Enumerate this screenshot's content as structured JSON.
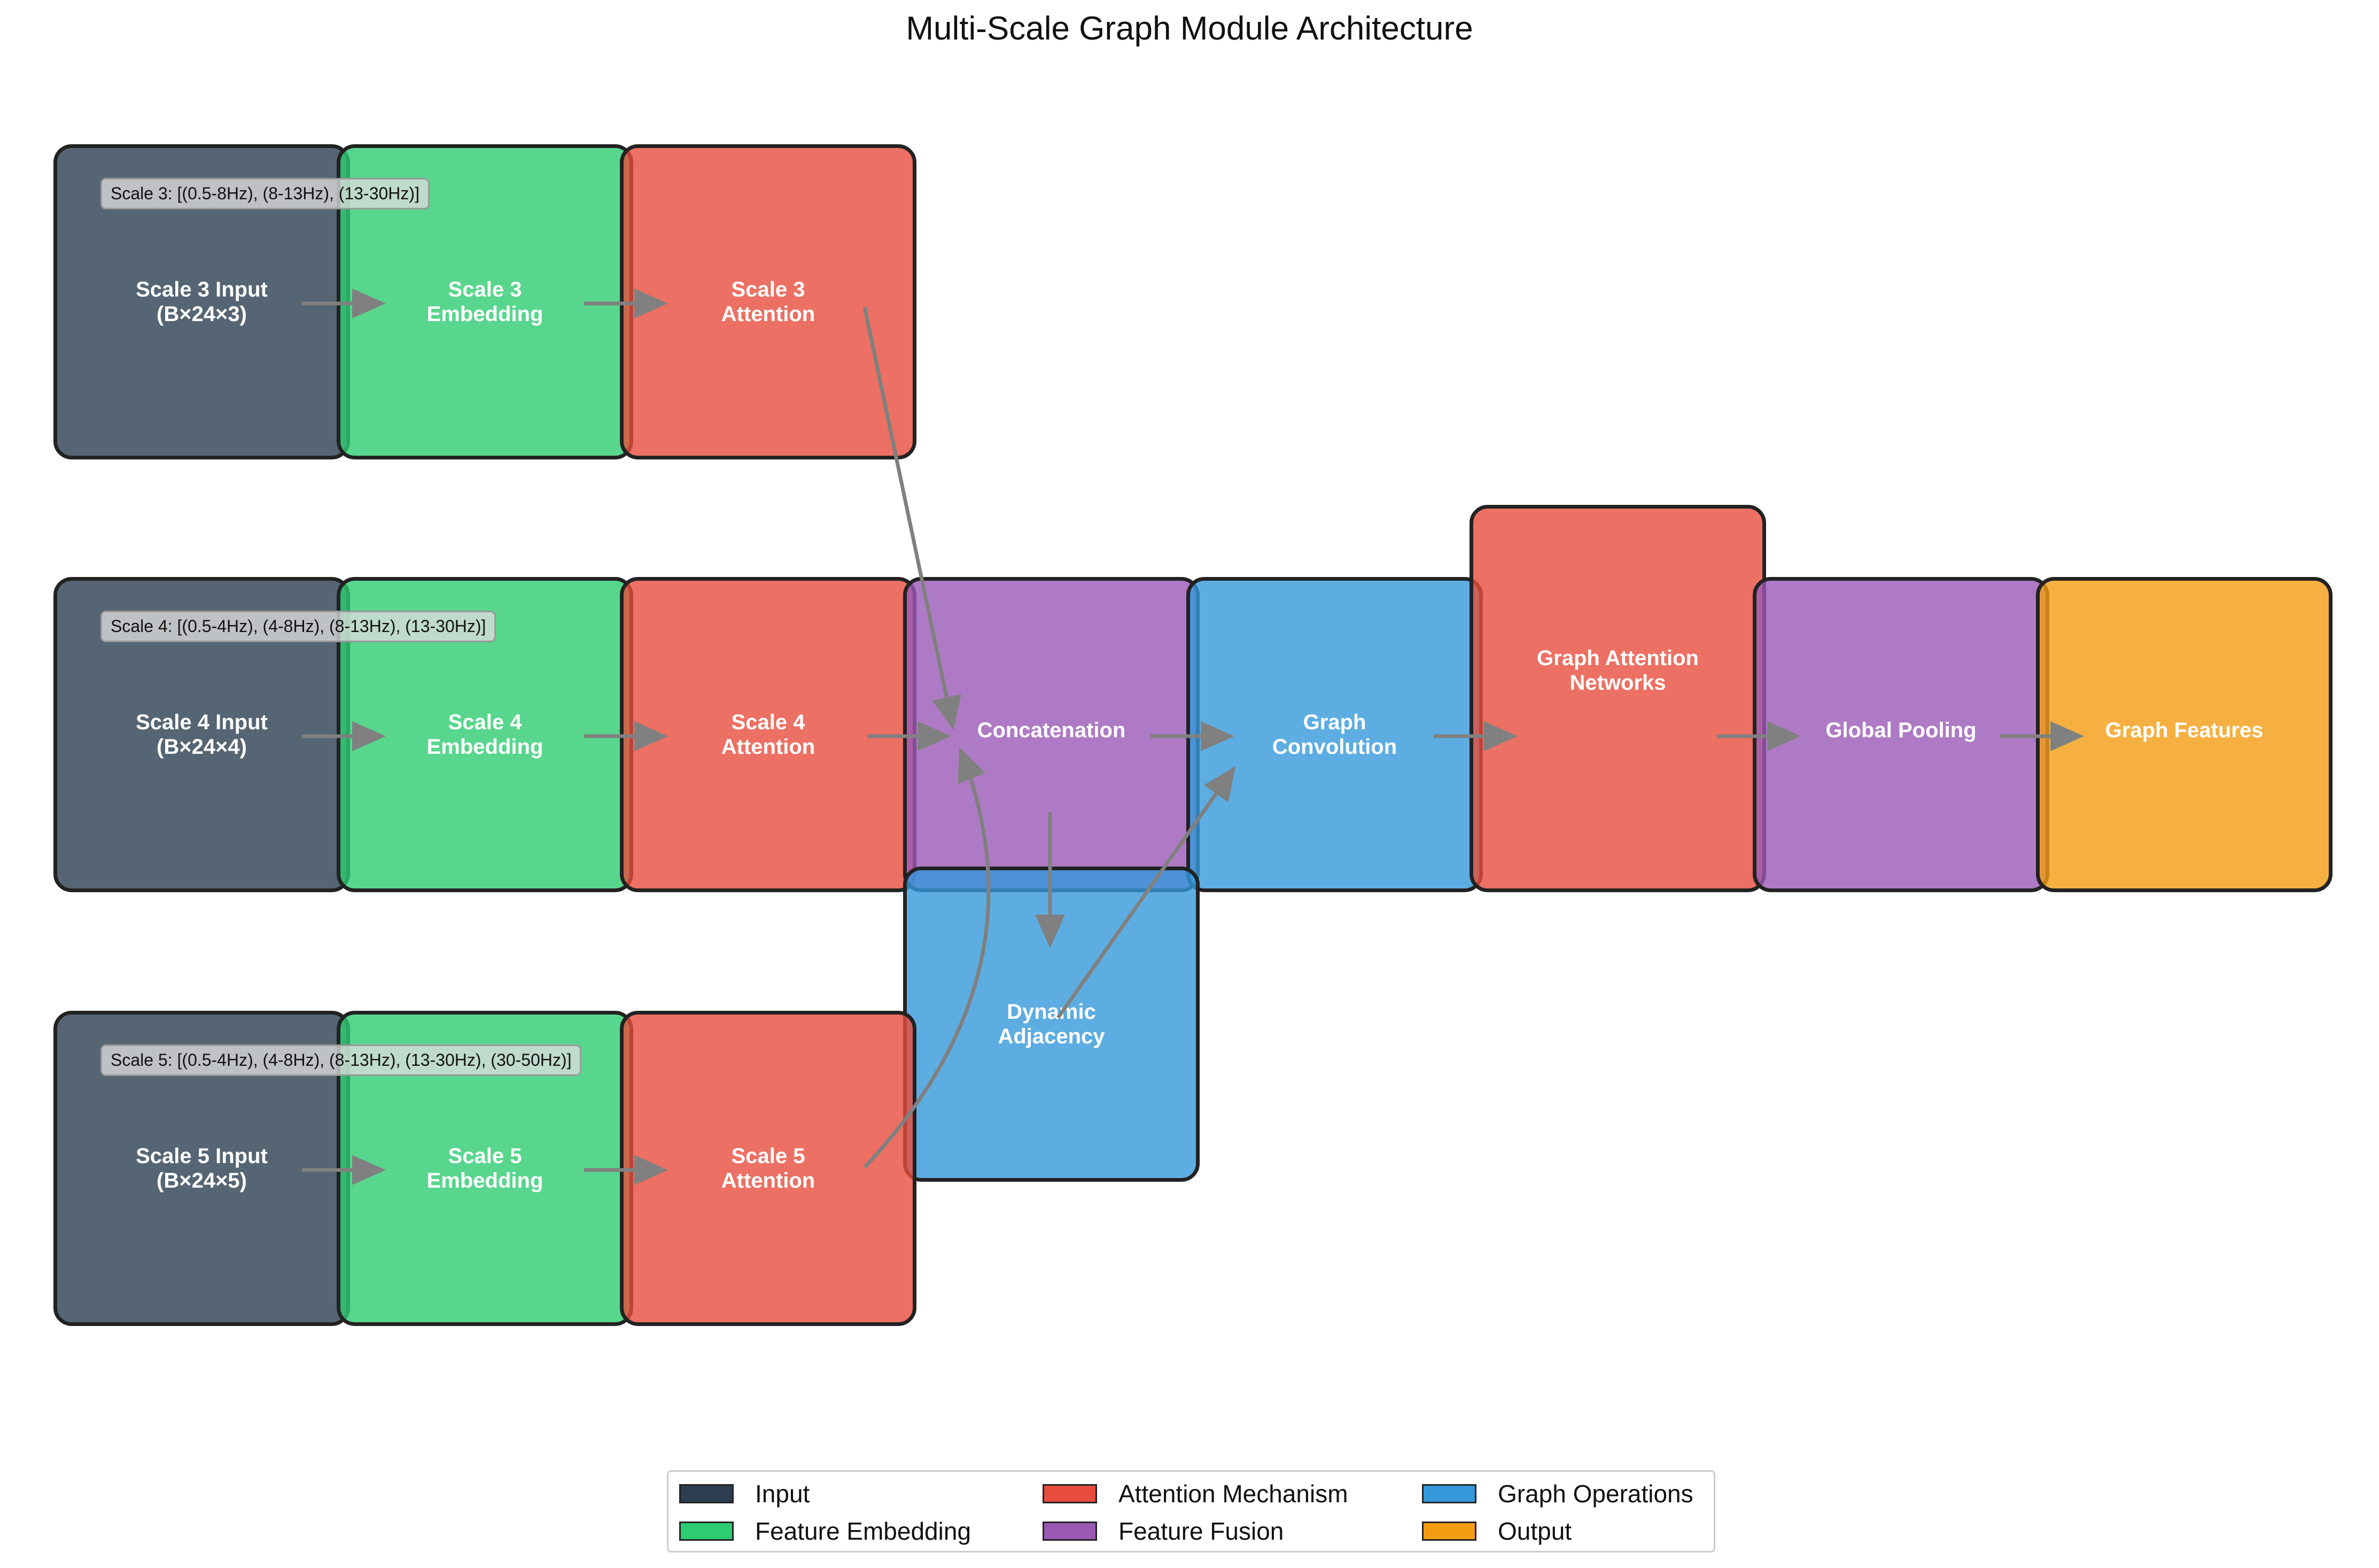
{
  "title": "Multi-Scale Graph Module Architecture",
  "nodes": {
    "scale3_input": "Scale 3 Input\n(B×24×3)",
    "scale3_embedding": "Scale 3\nEmbedding",
    "scale3_attention": "Scale 3\nAttention",
    "scale4_input": "Scale 4 Input\n(B×24×4)",
    "scale4_embedding": "Scale 4\nEmbedding",
    "scale4_attention": "Scale 4\nAttention",
    "scale5_input": "Scale 5 Input\n(B×24×5)",
    "scale5_embedding": "Scale 5\nEmbedding",
    "scale5_attention": "Scale 5\nAttention",
    "concatenation": "Concatenation",
    "dynamic_adjacency": "Dynamic\nAdjacency",
    "graph_convolution": "Graph\nConvolution",
    "graph_attention_networks": "Graph Attention\nNetworks",
    "global_pooling": "Global Pooling",
    "graph_features": "Graph Features"
  },
  "scale_labels": {
    "scale3": "Scale 3: [(0.5-8Hz), (8-13Hz), (13-30Hz)]",
    "scale4": "Scale 4: [(0.5-4Hz), (4-8Hz), (8-13Hz), (13-30Hz)]",
    "scale5": "Scale 5: [(0.5-4Hz), (4-8Hz), (8-13Hz), (13-30Hz), (30-50Hz)]"
  },
  "legend": [
    {
      "label": "Input",
      "color": "#2c3e50"
    },
    {
      "label": "Feature Embedding",
      "color": "#2ecc71"
    },
    {
      "label": "Attention Mechanism",
      "color": "#e74c3c"
    },
    {
      "label": "Feature Fusion",
      "color": "#9b59b6"
    },
    {
      "label": "Graph Operations",
      "color": "#3498db"
    },
    {
      "label": "Output",
      "color": "#f39c12"
    }
  ],
  "colors": {
    "input": "#2c3e50",
    "embedding": "#2ecc71",
    "attention": "#e74c3c",
    "fusion": "#9b59b6",
    "graph": "#3498db",
    "output": "#f39c12",
    "arrow": "#808080"
  }
}
